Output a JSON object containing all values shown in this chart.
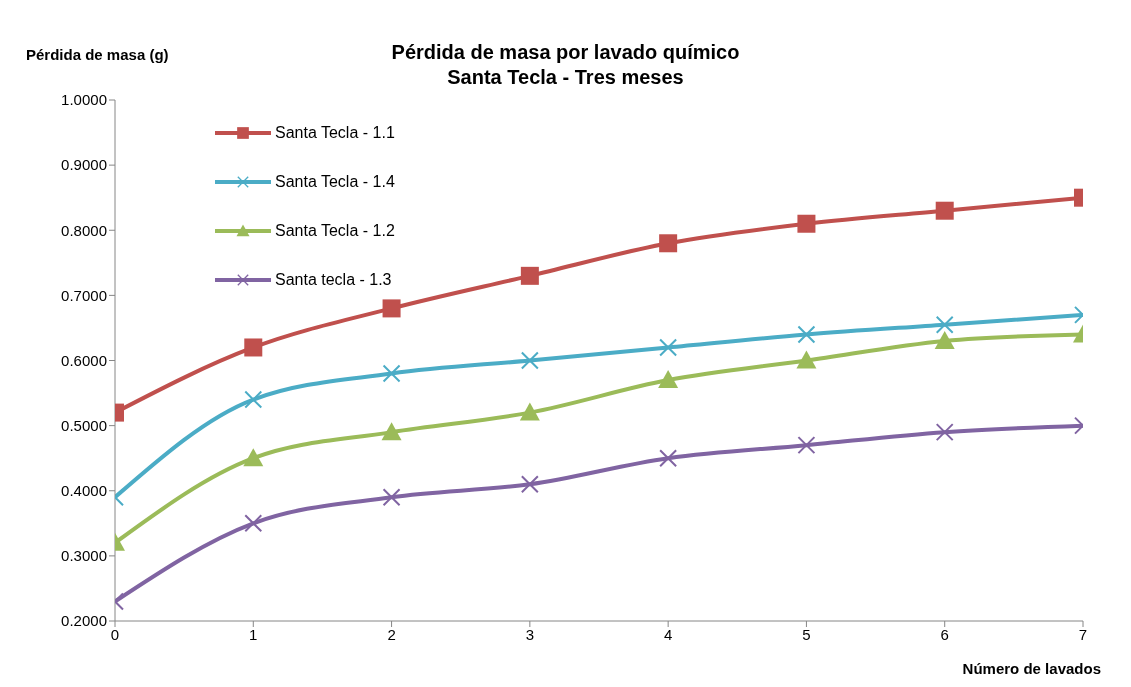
{
  "chart_data": {
    "type": "line",
    "title": "Pérdida de masa por lavado químico",
    "subtitle": "Santa Tecla - Tres meses",
    "xlabel": "Número de lavados",
    "ylabel": "Pérdida de masa (g)",
    "x": [
      0,
      1,
      2,
      3,
      4,
      5,
      6,
      7
    ],
    "xlim": [
      0,
      7
    ],
    "xticks": [
      0,
      1,
      2,
      3,
      4,
      5,
      6,
      7
    ],
    "ylim": [
      0.2,
      1.0
    ],
    "yticks": [
      {
        "value": 0.2,
        "label": "0.2000"
      },
      {
        "value": 0.3,
        "label": "0.3000"
      },
      {
        "value": 0.4,
        "label": "0.4000"
      },
      {
        "value": 0.5,
        "label": "0.5000"
      },
      {
        "value": 0.6,
        "label": "0.6000"
      },
      {
        "value": 0.7,
        "label": "0.7000"
      },
      {
        "value": 0.8,
        "label": "0.8000"
      },
      {
        "value": 0.9,
        "label": "0.9000"
      },
      {
        "value": 1.0,
        "label": "1.0000"
      }
    ],
    "grid": false,
    "legend": "top left",
    "line_style": "solid",
    "series": [
      {
        "name": "Santa Tecla - 1.1",
        "color": "#c0504d",
        "marker": "square",
        "values": [
          0.52,
          0.62,
          0.68,
          0.73,
          0.78,
          0.81,
          0.83,
          0.85
        ]
      },
      {
        "name": "Santa Tecla - 1.4",
        "color": "#4bacc6",
        "marker": "cross",
        "values": [
          0.39,
          0.54,
          0.58,
          0.6,
          0.62,
          0.64,
          0.655,
          0.67
        ]
      },
      {
        "name": "Santa Tecla - 1.2",
        "color": "#9bbb59",
        "marker": "triangle",
        "values": [
          0.32,
          0.45,
          0.49,
          0.52,
          0.57,
          0.6,
          0.63,
          0.64
        ]
      },
      {
        "name": "Santa tecla - 1.3",
        "color": "#8064a2",
        "marker": "cross",
        "values": [
          0.23,
          0.35,
          0.39,
          0.41,
          0.45,
          0.47,
          0.49,
          0.5
        ]
      }
    ]
  }
}
